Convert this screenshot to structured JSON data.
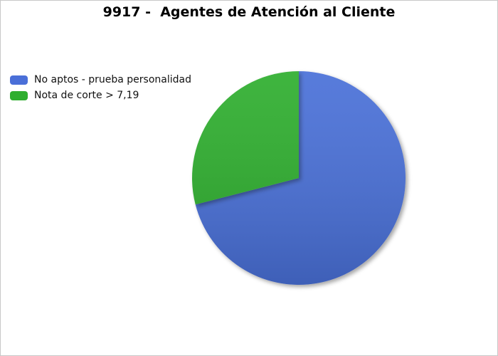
{
  "chart_data": {
    "type": "pie",
    "title": "9917 -  Agentes de Atención al Cliente",
    "legend_position": "top-left",
    "slices": [
      {
        "label": "No aptos - prueba personalidad",
        "value": 71,
        "color": "#4a6fd8"
      },
      {
        "label": "Nota de corte > 7,19",
        "value": 29,
        "color": "#2eae2e"
      }
    ]
  }
}
